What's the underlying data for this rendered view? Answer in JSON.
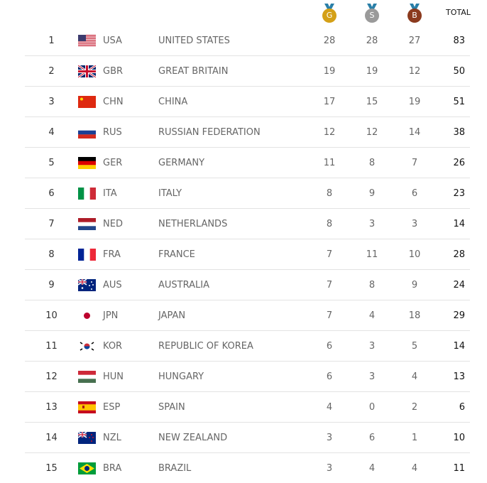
{
  "header": {
    "gold_label": "G",
    "silver_label": "S",
    "bronze_label": "B",
    "total_label": "TOTAL",
    "colors": {
      "gold": "#d4a017",
      "silver": "#9a9a9a",
      "bronze": "#8b3a1e",
      "ribbon": "#2a7fa8"
    }
  },
  "rows": [
    {
      "rank": "1",
      "code": "USA",
      "name": "UNITED STATES",
      "gold": "28",
      "silver": "28",
      "bronze": "27",
      "total": "83"
    },
    {
      "rank": "2",
      "code": "GBR",
      "name": "GREAT BRITAIN",
      "gold": "19",
      "silver": "19",
      "bronze": "12",
      "total": "50"
    },
    {
      "rank": "3",
      "code": "CHN",
      "name": "CHINA",
      "gold": "17",
      "silver": "15",
      "bronze": "19",
      "total": "51"
    },
    {
      "rank": "4",
      "code": "RUS",
      "name": "RUSSIAN FEDERATION",
      "gold": "12",
      "silver": "12",
      "bronze": "14",
      "total": "38"
    },
    {
      "rank": "5",
      "code": "GER",
      "name": "GERMANY",
      "gold": "11",
      "silver": "8",
      "bronze": "7",
      "total": "26"
    },
    {
      "rank": "6",
      "code": "ITA",
      "name": "ITALY",
      "gold": "8",
      "silver": "9",
      "bronze": "6",
      "total": "23"
    },
    {
      "rank": "7",
      "code": "NED",
      "name": "NETHERLANDS",
      "gold": "8",
      "silver": "3",
      "bronze": "3",
      "total": "14"
    },
    {
      "rank": "8",
      "code": "FRA",
      "name": "FRANCE",
      "gold": "7",
      "silver": "11",
      "bronze": "10",
      "total": "28"
    },
    {
      "rank": "9",
      "code": "AUS",
      "name": "AUSTRALIA",
      "gold": "7",
      "silver": "8",
      "bronze": "9",
      "total": "24"
    },
    {
      "rank": "10",
      "code": "JPN",
      "name": "JAPAN",
      "gold": "7",
      "silver": "4",
      "bronze": "18",
      "total": "29"
    },
    {
      "rank": "11",
      "code": "KOR",
      "name": "REPUBLIC OF KOREA",
      "gold": "6",
      "silver": "3",
      "bronze": "5",
      "total": "14"
    },
    {
      "rank": "12",
      "code": "HUN",
      "name": "HUNGARY",
      "gold": "6",
      "silver": "3",
      "bronze": "4",
      "total": "13"
    },
    {
      "rank": "13",
      "code": "ESP",
      "name": "SPAIN",
      "gold": "4",
      "silver": "0",
      "bronze": "2",
      "total": "6"
    },
    {
      "rank": "14",
      "code": "NZL",
      "name": "NEW ZEALAND",
      "gold": "3",
      "silver": "6",
      "bronze": "1",
      "total": "10"
    },
    {
      "rank": "15",
      "code": "BRA",
      "name": "BRAZIL",
      "gold": "3",
      "silver": "4",
      "bronze": "4",
      "total": "11"
    }
  ]
}
